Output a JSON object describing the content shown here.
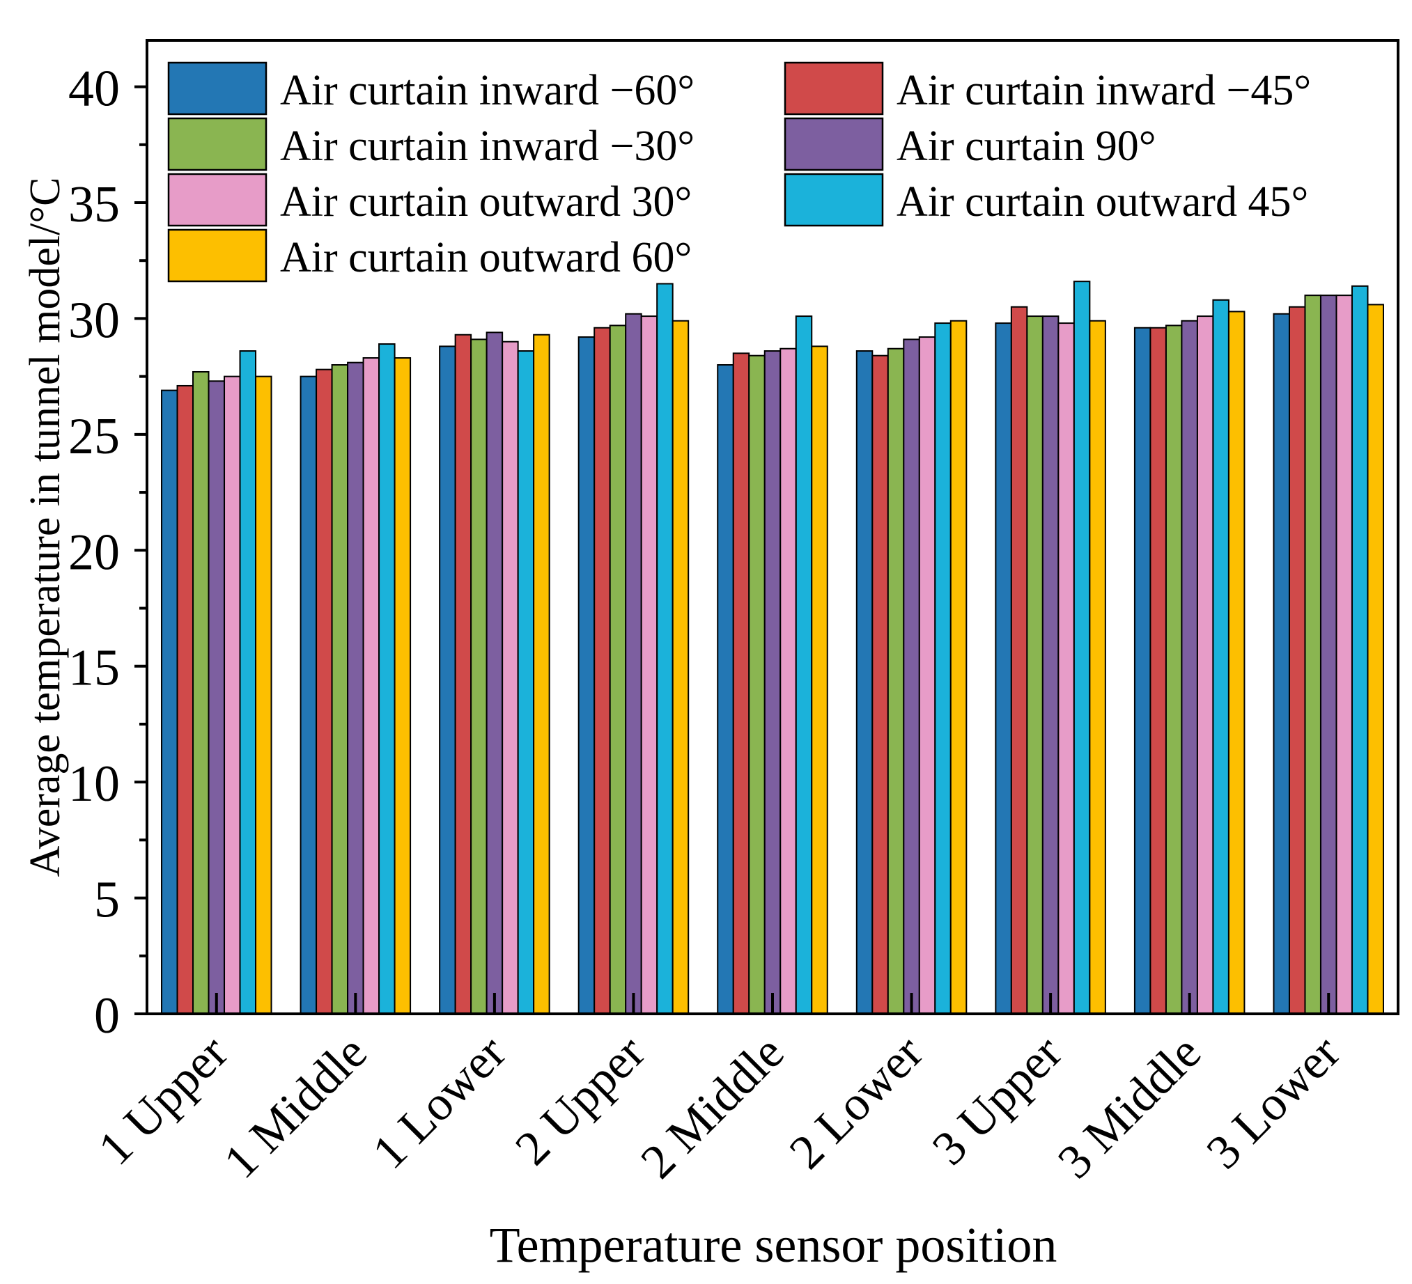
{
  "chart_data": {
    "type": "bar",
    "title": "",
    "xlabel": "Temperature sensor position",
    "ylabel": "Average temperature in tunnel model/°C",
    "ylim": [
      0,
      42
    ],
    "yticks": [
      0,
      5,
      10,
      15,
      20,
      25,
      30,
      35,
      40
    ],
    "categories": [
      "1 Upper",
      "1 Middle",
      "1 Lower",
      "2 Upper",
      "2 Middle",
      "2 Lower",
      "3 Upper",
      "3 Middle",
      "3 Lower"
    ],
    "legend_position": "top",
    "series": [
      {
        "name": "Air curtain inward −60°",
        "color": "#2377B4",
        "values": [
          26.9,
          27.5,
          28.8,
          29.2,
          28.0,
          28.6,
          29.8,
          29.6,
          30.2
        ]
      },
      {
        "name": "Air curtain inward −45°",
        "color": "#D04A4A",
        "values": [
          27.1,
          27.8,
          29.3,
          29.6,
          28.5,
          28.4,
          30.5,
          29.6,
          30.5
        ]
      },
      {
        "name": "Air curtain inward −30°",
        "color": "#8AB551",
        "values": [
          27.7,
          28.0,
          29.1,
          29.7,
          28.4,
          28.7,
          30.1,
          29.7,
          31.0
        ]
      },
      {
        "name": "Air curtain 90°",
        "color": "#7D5FA0",
        "values": [
          27.3,
          28.1,
          29.4,
          30.2,
          28.6,
          29.1,
          30.1,
          29.9,
          31.0
        ]
      },
      {
        "name": "Air curtain outward 30°",
        "color": "#E79CC8",
        "values": [
          27.5,
          28.3,
          29.0,
          30.1,
          28.7,
          29.2,
          29.8,
          30.1,
          31.0
        ]
      },
      {
        "name": "Air curtain outward 45°",
        "color": "#1BB2DA",
        "values": [
          28.6,
          28.9,
          28.6,
          31.5,
          30.1,
          29.8,
          31.6,
          30.8,
          31.4
        ]
      },
      {
        "name": "Air curtain outward 60°",
        "color": "#FDBF00",
        "values": [
          27.5,
          28.3,
          29.3,
          29.9,
          28.8,
          29.9,
          29.9,
          30.3,
          30.6
        ]
      }
    ]
  }
}
